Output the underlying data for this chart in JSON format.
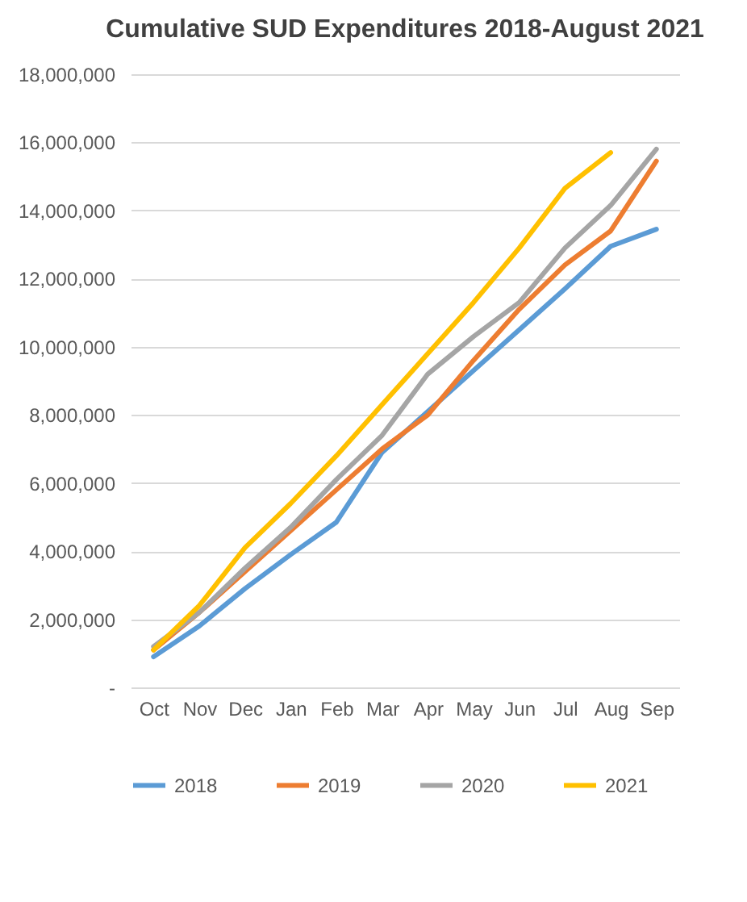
{
  "chart_data": {
    "type": "line",
    "title": "Cumulative SUD Expenditures 2018-August 2021",
    "categories": [
      "Oct",
      "Nov",
      "Dec",
      "Jan",
      "Feb",
      "Mar",
      "Apr",
      "May",
      "Jun",
      "Jul",
      "Aug",
      "Sep"
    ],
    "series": [
      {
        "name": "2018",
        "color": "#5b9bd5",
        "values": [
          900000,
          1800000,
          2900000,
          3900000,
          4850000,
          6900000,
          8100000,
          9300000,
          10500000,
          11700000,
          12950000,
          13450000
        ]
      },
      {
        "name": "2019",
        "color": "#ed7d31",
        "values": [
          1100000,
          2200000,
          3400000,
          4600000,
          5800000,
          7000000,
          8000000,
          9600000,
          11100000,
          12400000,
          13400000,
          15450000
        ]
      },
      {
        "name": "2020",
        "color": "#a5a5a5",
        "values": [
          1200000,
          2200000,
          3500000,
          4700000,
          6100000,
          7400000,
          9200000,
          10300000,
          11300000,
          12900000,
          14150000,
          15800000
        ]
      },
      {
        "name": "2021",
        "color": "#ffc000",
        "values": [
          1100000,
          2400000,
          4100000,
          5400000,
          6800000,
          8300000,
          9800000,
          11300000,
          12900000,
          14650000,
          15700000,
          null
        ]
      }
    ],
    "ylim": [
      0,
      18000000
    ],
    "yticks": [
      {
        "value": 0,
        "label": "-"
      },
      {
        "value": 2000000,
        "label": "2,000,000"
      },
      {
        "value": 4000000,
        "label": "4,000,000"
      },
      {
        "value": 6000000,
        "label": "6,000,000"
      },
      {
        "value": 8000000,
        "label": "8,000,000"
      },
      {
        "value": 10000000,
        "label": "10,000,000"
      },
      {
        "value": 12000000,
        "label": "12,000,000"
      },
      {
        "value": 14000000,
        "label": "14,000,000"
      },
      {
        "value": 16000000,
        "label": "16,000,000"
      },
      {
        "value": 18000000,
        "label": "18,000,000"
      }
    ],
    "grid": "y",
    "legend": "bottom",
    "marker": "none",
    "line_style": "solid"
  }
}
